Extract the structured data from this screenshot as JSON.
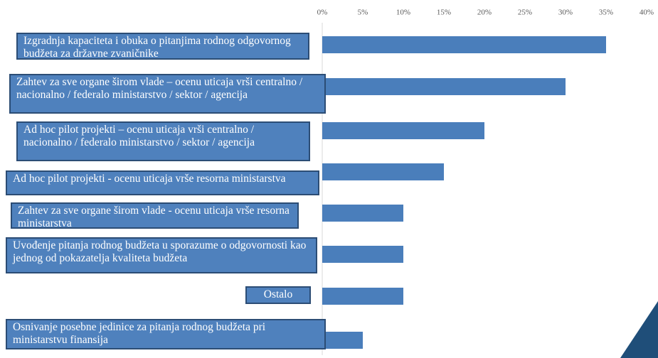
{
  "chart_data": {
    "type": "hbar",
    "categories": [
      "Izgradnja kapaciteta i obuka o pitanjima rodnog odgovornog budžeta za državne zvaničnike",
      "Zahtev za sve organe širom vlade – ocenu uticaja vrši centralno / nacionalno / federalo ministarstvo / sektor / agencija",
      "Ad hoc pilot projekti – ocenu uticaja  vrši centralno / nacionalno / federalo ministarstvo / sektor / agencija",
      "Ad hoc pilot projekti - ocenu uticaja vrše resorna ministarstva",
      "Zahtev za sve organe širom vlade - ocenu uticaja vrše resorna ministarstva",
      "Uvođenje pitanja rodnog budžeta u sporazume o odgovornosti kao jednog od pokazatelja kvaliteta budžeta",
      "Ostalo",
      "Osnivanje posebne jedinice za pitanja rodnog budžeta pri  ministarstvu finansija"
    ],
    "values": [
      35,
      30,
      20,
      15,
      10,
      10,
      10,
      5
    ],
    "color": "#4a7ebb",
    "xlim": [
      0,
      40
    ],
    "xticks": [
      {
        "value": 0,
        "label": "0%"
      },
      {
        "value": 5,
        "label": "5%"
      },
      {
        "value": 10,
        "label": "10%"
      },
      {
        "value": 15,
        "label": "15%"
      },
      {
        "value": 20,
        "label": "20%"
      },
      {
        "value": 25,
        "label": "25%"
      },
      {
        "value": 30,
        "label": "30%"
      },
      {
        "value": 35,
        "label": "35%"
      },
      {
        "value": 40,
        "label": "40%"
      }
    ]
  }
}
